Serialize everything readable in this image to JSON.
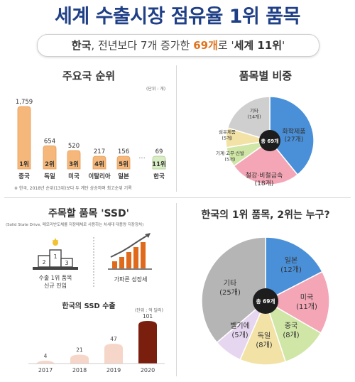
{
  "header": {
    "title": "세계 수출시장 점유율 1위 품목",
    "subtitle_a": "한국",
    "subtitle_b": ", 전년보다 7개 증가한 ",
    "subtitle_c": "69개",
    "subtitle_d": "로 '",
    "subtitle_e": "세계 11위",
    "subtitle_f": "'"
  },
  "ranking": {
    "title": "주요국 순위",
    "unit": "(단위 : 개)",
    "ellipsis": "···",
    "note": "※ 한국, 2018년 순위(13위)보다 두 계단 상승하며 최고순위 기록",
    "colors": {
      "bar": "#f5b87a",
      "bar_stroke": "#e79a55",
      "korea_bar": "#d9edc4",
      "korea_stroke": "#a9c98c"
    }
  },
  "pie1": {
    "title": "품목별 비중",
    "center_label": "총 69개",
    "colors": [
      "#4a90d9",
      "#f4a6b6",
      "#cfe6a6",
      "#f2e2a6",
      "#cfcfcf"
    ],
    "labels": [
      {
        "name": "화학제품",
        "count": "(27개)"
      },
      {
        "name": "철강·비철금속",
        "count": "(18개)"
      },
      {
        "name": "기계·고무·신발",
        "count": "(5개)"
      },
      {
        "name": "섬유제품",
        "count": "(5개)"
      },
      {
        "name": "기타",
        "count": "(14개)"
      }
    ]
  },
  "ssd": {
    "title": "주목할 품목 'SSD'",
    "desc": "(Solid State Drive, 메모리반도체를 저장매체로 사용하는 차세대 대용량 저장장치)",
    "icon1_label_1": "수출 1위 품목",
    "icon1_label_2": "신규 진입",
    "icon2_label": "가파른 성장세",
    "podium_numbers": [
      "2",
      "1",
      "3"
    ],
    "chart_title": "한국의 SSD 수출",
    "chart_unit": "(단위 : 억 달러)",
    "colors": {
      "bar_dark": "#7a1f0e",
      "bar_light": "#f6d6c8"
    }
  },
  "pie2": {
    "title": "한국의 1위 품목, 2위는 누구?",
    "center_label": "총 69개",
    "colors": [
      "#4a90d9",
      "#f4a6b6",
      "#cfe6a6",
      "#f2e2a6",
      "#e6d6f0",
      "#b5b5b5"
    ],
    "labels": [
      {
        "name": "일본",
        "count": "(12개)"
      },
      {
        "name": "미국",
        "count": "(11개)"
      },
      {
        "name": "중국",
        "count": "(8개)"
      },
      {
        "name": "독일",
        "count": "(8개)"
      },
      {
        "name": "벨기에",
        "count": "(5개)"
      },
      {
        "name": "기타",
        "count": "(25개)"
      }
    ]
  },
  "chart_data": [
    {
      "type": "bar",
      "title": "주요국 순위",
      "categories": [
        "중국",
        "독일",
        "미국",
        "이탈리아",
        "일본",
        "한국"
      ],
      "values": [
        1759,
        654,
        520,
        217,
        156,
        69
      ],
      "value_labels": [
        "1,759",
        "654",
        "520",
        "217",
        "156",
        "69"
      ],
      "rank_labels": [
        "1위",
        "2위",
        "3위",
        "4위",
        "5위",
        "11위"
      ],
      "unit": "개"
    },
    {
      "type": "pie",
      "title": "품목별 비중",
      "categories": [
        "화학제품",
        "철강·비철금속",
        "기계·고무·신발",
        "섬유제품",
        "기타"
      ],
      "values": [
        27,
        18,
        5,
        5,
        14
      ]
    },
    {
      "type": "bar",
      "title": "한국의 SSD 수출",
      "categories": [
        "2017",
        "2018",
        "2019",
        "2020"
      ],
      "values": [
        4,
        21,
        47,
        101
      ],
      "value_labels": [
        "4",
        "21",
        "47",
        "101"
      ],
      "unit": "억 달러"
    },
    {
      "type": "pie",
      "title": "한국의 1위 품목, 2위는 누구?",
      "categories": [
        "일본",
        "미국",
        "중국",
        "독일",
        "벨기에",
        "기타"
      ],
      "values": [
        12,
        11,
        8,
        8,
        5,
        25
      ]
    }
  ]
}
